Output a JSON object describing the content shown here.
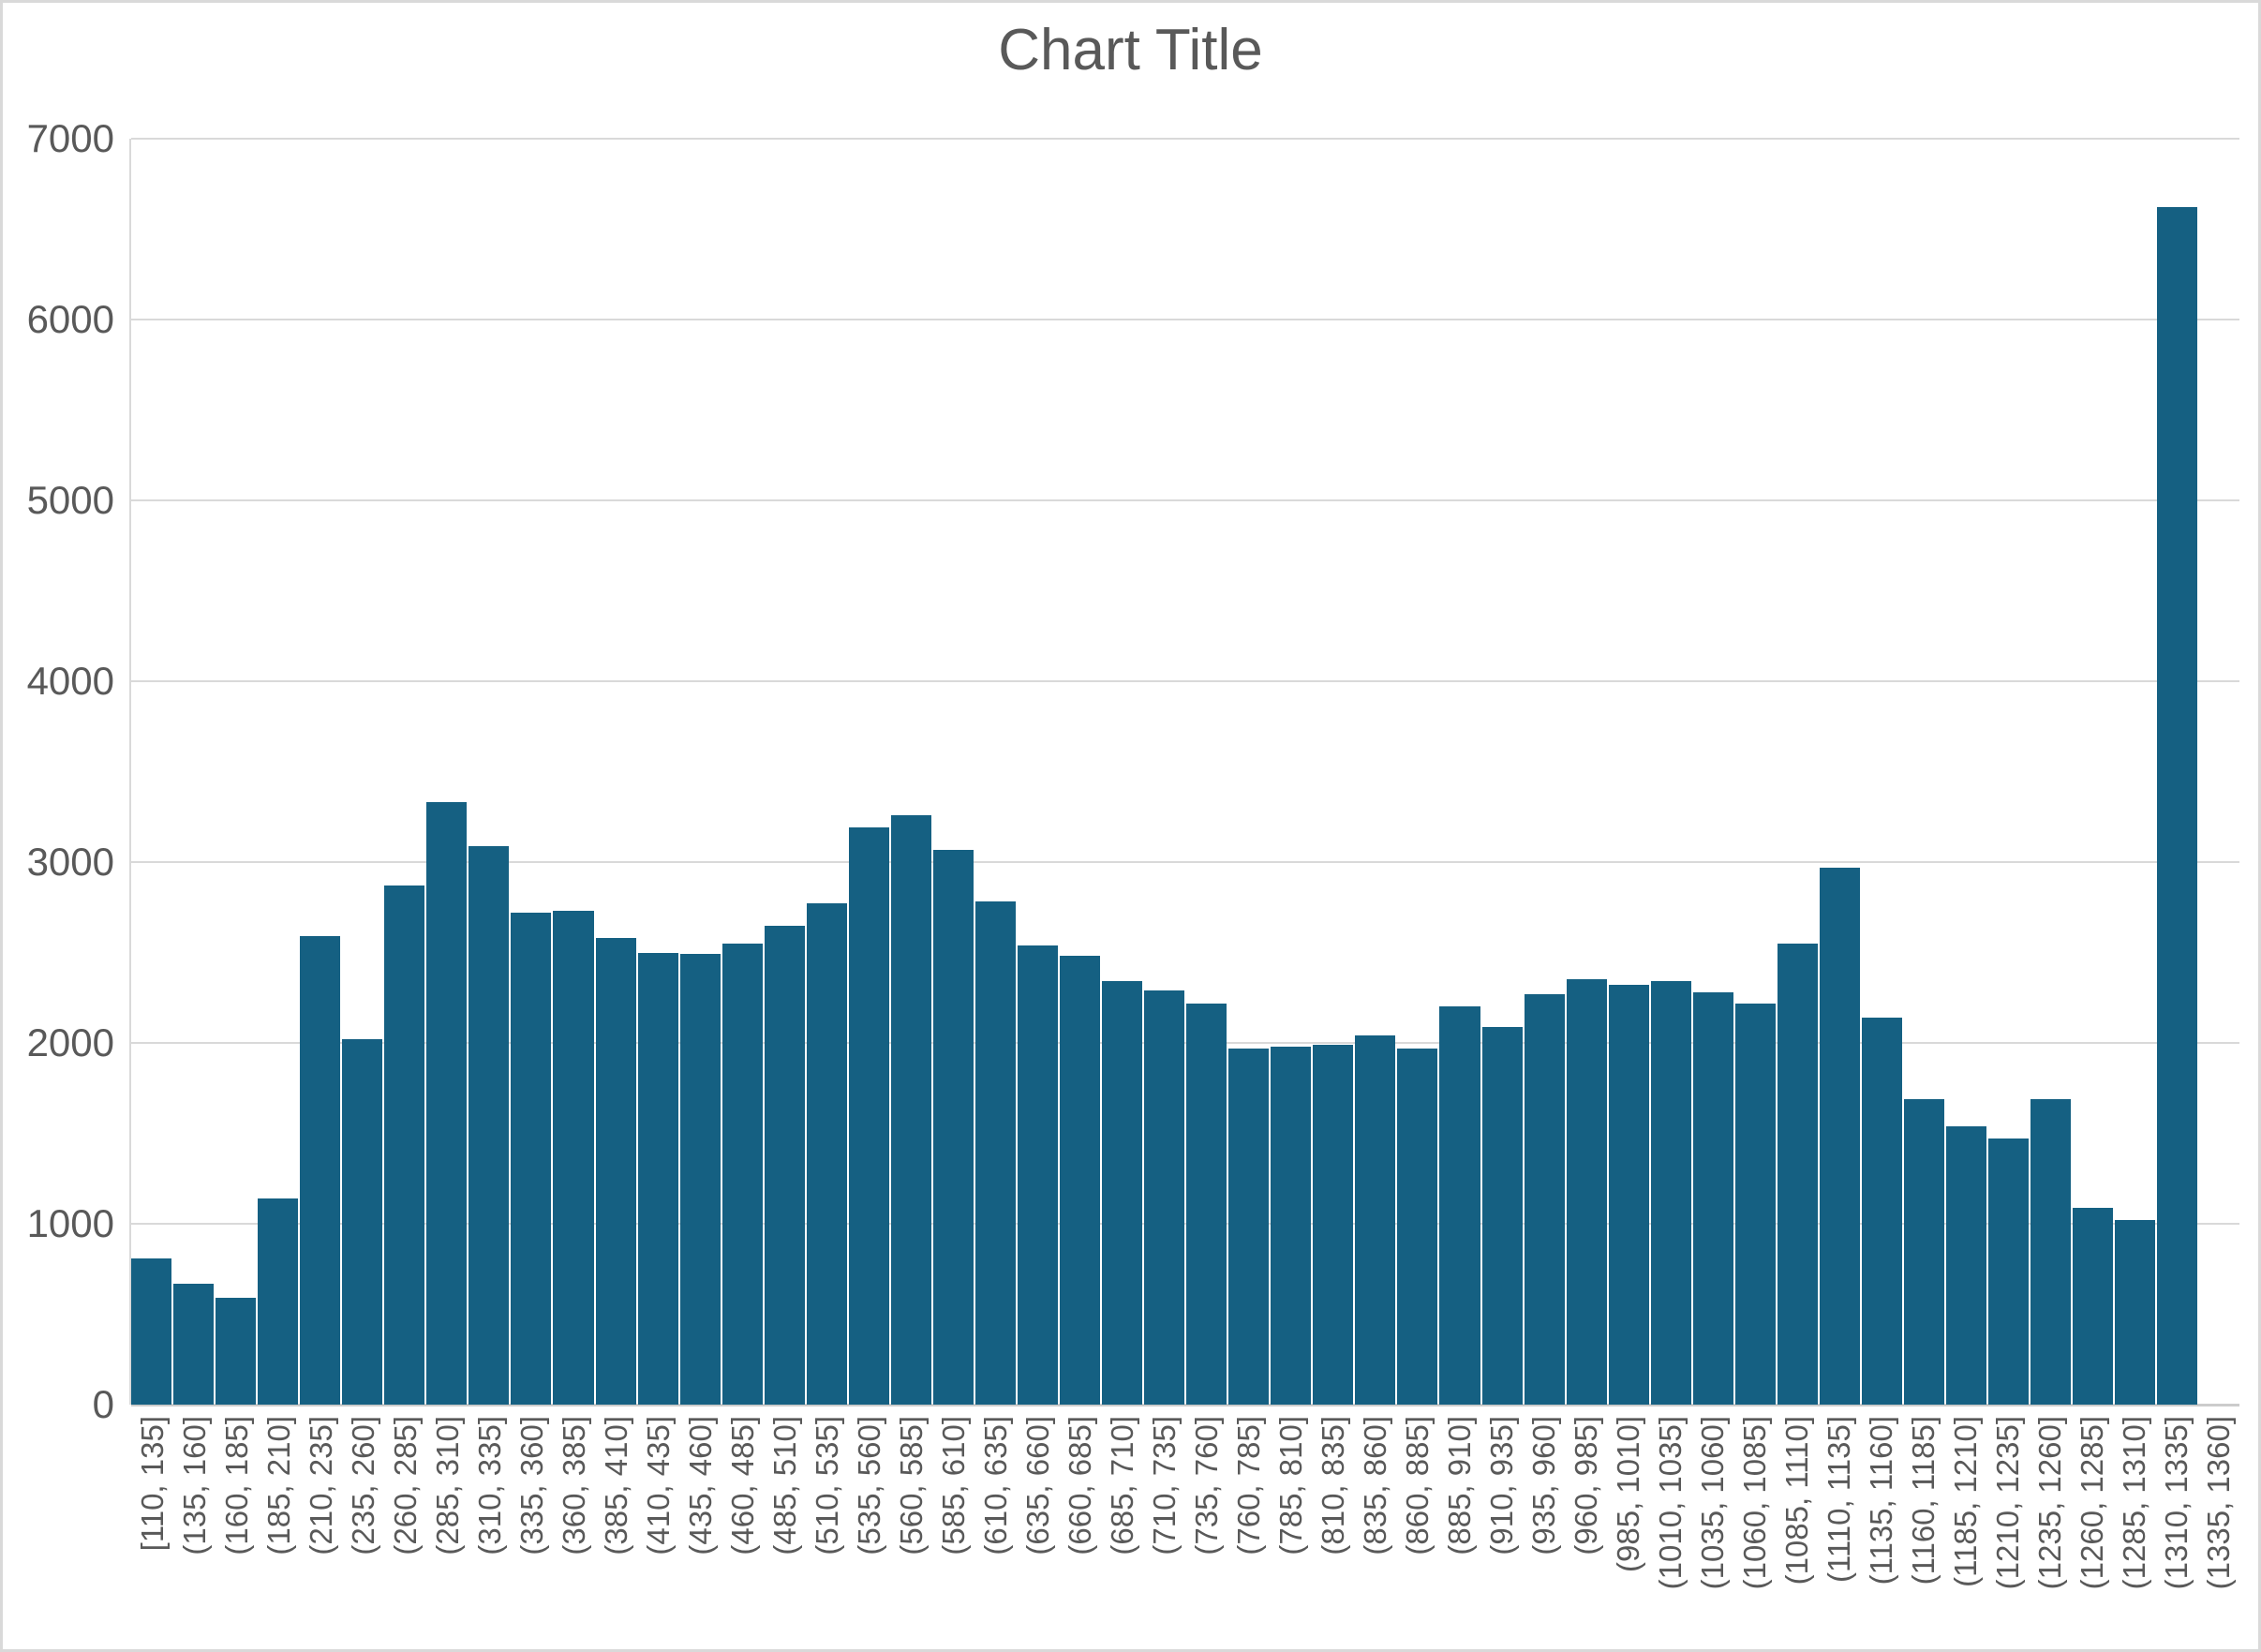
{
  "title": "Chart Title",
  "colors": {
    "bar": "#156082",
    "gridline": "#d9d9d9",
    "axis_line": "#cccccc",
    "text": "#595959",
    "background": "#ffffff"
  },
  "y_axis": {
    "ticks": [
      7000,
      6000,
      5000,
      4000,
      3000,
      2000,
      1000,
      0
    ],
    "max": 7000
  },
  "chart_data": {
    "type": "bar",
    "title": "Chart Title",
    "xlabel": "",
    "ylabel": "",
    "ylim": [
      0,
      7000
    ],
    "yticks": [
      0,
      1000,
      2000,
      3000,
      4000,
      5000,
      6000,
      7000
    ],
    "grid": true,
    "legend": false,
    "bar_gap": "none (histogram, adjacent bars)",
    "categories": [
      "[110, 135]",
      "(135, 160]",
      "(160, 185]",
      "(185, 210]",
      "(210, 235]",
      "(235, 260]",
      "(260, 285]",
      "(285, 310]",
      "(310, 335]",
      "(335, 360]",
      "(360, 385]",
      "(385, 410]",
      "(410, 435]",
      "(435, 460]",
      "(460, 485]",
      "(485, 510]",
      "(510, 535]",
      "(535, 560]",
      "(560, 585]",
      "(585, 610]",
      "(610, 635]",
      "(635, 660]",
      "(660, 685]",
      "(685, 710]",
      "(710, 735]",
      "(735, 760]",
      "(760, 785]",
      "(785, 810]",
      "(810, 835]",
      "(835, 860]",
      "(860, 885]",
      "(885, 910]",
      "(910, 935]",
      "(935, 960]",
      "(960, 985]",
      "(985, 1010]",
      "(1010, 1035]",
      "(1035, 1060]",
      "(1060, 1085]",
      "(1085, 1110]",
      "(1110, 1135]",
      "(1135, 1160]",
      "(1160, 1185]",
      "(1185, 1210]",
      "(1210, 1235]",
      "(1235, 1260]",
      "(1260, 1285]",
      "(1285, 1310]",
      "(1310, 1335]",
      "(1335, 1360]"
    ],
    "values": [
      810,
      670,
      590,
      1140,
      2590,
      2020,
      2870,
      3330,
      3090,
      2720,
      2730,
      2580,
      2500,
      2490,
      2550,
      2650,
      2770,
      3190,
      3260,
      3070,
      2780,
      2540,
      2480,
      2340,
      2290,
      2220,
      1970,
      1980,
      1990,
      2040,
      1970,
      2200,
      2090,
      2270,
      2350,
      2320,
      2340,
      2280,
      2220,
      2550,
      2970,
      2140,
      1690,
      1540,
      1470,
      1690,
      1090,
      1020,
      6620,
      0
    ]
  }
}
